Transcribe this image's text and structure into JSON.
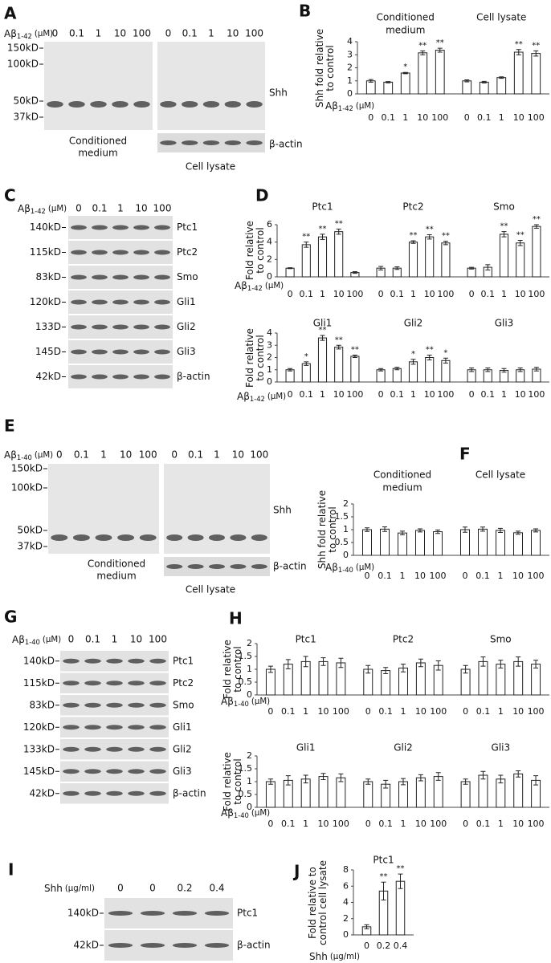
{
  "blots": [
    {
      "panel": "A",
      "treatment": {
        "base": "Aβ",
        "sub": "1-42",
        "unit": "(μM)"
      },
      "lanes": [
        [
          "0",
          "0.1",
          "1",
          "10",
          "100"
        ],
        [
          "0",
          "0.1",
          "1",
          "10",
          "100"
        ]
      ],
      "markers": [
        "150kD",
        "100kD",
        "50kD",
        "37kD"
      ],
      "bands": [
        "Shh",
        "β-actin"
      ],
      "captions": [
        [
          "Conditioned",
          "medium"
        ],
        [
          "Cell lysate"
        ]
      ]
    },
    {
      "panel": "C",
      "treatment": {
        "base": "Aβ",
        "sub": "1-42",
        "unit": "(μM)"
      },
      "lanes": [
        [
          "0",
          "0.1",
          "1",
          "10",
          "100"
        ]
      ],
      "rows": [
        {
          "marker": "140kD",
          "band": "Ptc1"
        },
        {
          "marker": "115kD",
          "band": "Ptc2"
        },
        {
          "marker": "83kD",
          "band": "Smo"
        },
        {
          "marker": "120kD",
          "band": "Gli1"
        },
        {
          "marker": "133D",
          "band": "Gli2"
        },
        {
          "marker": "145D",
          "band": "Gli3"
        },
        {
          "marker": "42kD",
          "band": "β-actin"
        }
      ]
    },
    {
      "panel": "E",
      "treatment": {
        "base": "Aβ",
        "sub": "1-40",
        "unit": "(μM)"
      },
      "lanes": [
        [
          "0",
          "0.1",
          "1",
          "10",
          "100"
        ],
        [
          "0",
          "0.1",
          "1",
          "10",
          "100"
        ]
      ],
      "markers": [
        "150kD",
        "100kD",
        "50kD",
        "37kD"
      ],
      "bands": [
        "Shh",
        "β-actin"
      ],
      "captions": [
        [
          "Conditioned",
          "medium"
        ],
        [
          "Cell lysate"
        ]
      ]
    },
    {
      "panel": "G",
      "treatment": {
        "base": "Aβ",
        "sub": "1-40",
        "unit": "(μM)"
      },
      "lanes": [
        [
          "0",
          "0.1",
          "1",
          "10",
          "100"
        ]
      ],
      "rows": [
        {
          "marker": "140kD",
          "band": "Ptc1"
        },
        {
          "marker": "115kD",
          "band": "Ptc2"
        },
        {
          "marker": "83kD",
          "band": "Smo"
        },
        {
          "marker": "120kD",
          "band": "Gli1"
        },
        {
          "marker": "133kD",
          "band": "Gli2"
        },
        {
          "marker": "145kD",
          "band": "Gli3"
        },
        {
          "marker": "42kD",
          "band": "β-actin"
        }
      ]
    },
    {
      "panel": "I",
      "treatment": {
        "base": "Shh",
        "unit": "(μg/ml)"
      },
      "lanes": [
        [
          "0",
          "0",
          "0.2",
          "0.4"
        ]
      ],
      "rows": [
        {
          "marker": "140kD",
          "band": "Ptc1"
        },
        {
          "marker": "42kD",
          "band": "β-actin"
        }
      ]
    }
  ],
  "chart_data": [
    {
      "type": "bar",
      "panel": "B",
      "ylabel": [
        "Shh fold relative",
        "to control"
      ],
      "xlabel": {
        "base": "Aβ",
        "sub": "1-42",
        "unit": "(μM)"
      },
      "categories": [
        "0",
        "0.1",
        "1",
        "10",
        "100"
      ],
      "ylim": [
        0,
        4
      ],
      "yticks": [
        0,
        1,
        2,
        3,
        4
      ],
      "series": [
        {
          "name": [
            "Conditioned",
            "medium"
          ],
          "values": [
            1,
            0.9,
            1.6,
            3.15,
            3.35
          ],
          "errors": [
            0.1,
            0.05,
            0.05,
            0.15,
            0.15
          ],
          "significance": [
            null,
            null,
            "*",
            "**",
            "**"
          ]
        },
        {
          "name": [
            "Cell lysate"
          ],
          "values": [
            1,
            0.9,
            1.25,
            3.2,
            3.1
          ],
          "errors": [
            0.08,
            0.06,
            0.06,
            0.2,
            0.2
          ],
          "significance": [
            null,
            null,
            null,
            "**",
            "**"
          ]
        }
      ]
    },
    {
      "type": "bar",
      "panel": "D",
      "ylabel": [
        "Fold relative",
        "to control"
      ],
      "xlabel": {
        "base": "Aβ",
        "sub": "1-42",
        "unit": "(μM)"
      },
      "categories": [
        "0",
        "0.1",
        "1",
        "10",
        "100"
      ],
      "ylim": [
        0,
        6
      ],
      "yticks": [
        0,
        2,
        4,
        6
      ],
      "series": [
        {
          "name": [
            "Ptc1"
          ],
          "values": [
            1,
            3.7,
            4.6,
            5.2,
            0.5
          ],
          "errors": [
            0.05,
            0.3,
            0.3,
            0.3,
            0.1
          ],
          "significance": [
            null,
            "**",
            "**",
            "**",
            null
          ]
        },
        {
          "name": [
            "Ptc2"
          ],
          "values": [
            1,
            1,
            4.0,
            4.6,
            3.9
          ],
          "errors": [
            0.2,
            0.15,
            0.15,
            0.25,
            0.2
          ],
          "significance": [
            null,
            null,
            "**",
            "**",
            "**"
          ]
        },
        {
          "name": [
            "Smo"
          ],
          "values": [
            1,
            1.1,
            4.9,
            3.9,
            5.8
          ],
          "errors": [
            0.1,
            0.3,
            0.3,
            0.3,
            0.2
          ],
          "significance": [
            null,
            null,
            "**",
            "**",
            "**"
          ]
        }
      ]
    },
    {
      "type": "bar",
      "ylabel": [
        "Fold relative",
        "to control"
      ],
      "xlabel": {
        "base": "Aβ",
        "sub": "1-42",
        "unit": "(μM)"
      },
      "categories": [
        "0",
        "0.1",
        "1",
        "10",
        "100"
      ],
      "ylim": [
        0,
        4
      ],
      "yticks": [
        0,
        1,
        2,
        3,
        4
      ],
      "series": [
        {
          "name": [
            "Gli1"
          ],
          "values": [
            1,
            1.5,
            3.6,
            2.85,
            2.1
          ],
          "errors": [
            0.1,
            0.15,
            0.2,
            0.15,
            0.1
          ],
          "significance": [
            null,
            "*",
            "**",
            "**",
            "**"
          ]
        },
        {
          "name": [
            "Gli2"
          ],
          "values": [
            1,
            1.1,
            1.65,
            2.0,
            1.75
          ],
          "errors": [
            0.1,
            0.1,
            0.2,
            0.2,
            0.2
          ],
          "significance": [
            null,
            null,
            "*",
            "**",
            "*"
          ]
        },
        {
          "name": [
            "Gli3"
          ],
          "values": [
            1,
            1,
            0.95,
            1,
            1.05
          ],
          "errors": [
            0.15,
            0.15,
            0.15,
            0.15,
            0.15
          ],
          "significance": [
            null,
            null,
            null,
            null,
            null
          ]
        }
      ]
    },
    {
      "type": "bar",
      "panel": "F",
      "ylabel": [
        "Shh fold relative",
        "to control"
      ],
      "xlabel": {
        "base": "Aβ",
        "sub": "1-40",
        "unit": "(μM)"
      },
      "categories": [
        "0",
        "0.1",
        "1",
        "10",
        "100"
      ],
      "ylim": [
        0,
        2
      ],
      "yticks": [
        0,
        0.5,
        1,
        1.5,
        2
      ],
      "series": [
        {
          "name": [
            "Conditioned",
            "medium"
          ],
          "values": [
            1,
            1.02,
            0.87,
            0.97,
            0.92
          ],
          "errors": [
            0.07,
            0.09,
            0.07,
            0.06,
            0.07
          ]
        },
        {
          "name": [
            "Cell lysate"
          ],
          "values": [
            1,
            1.02,
            0.97,
            0.88,
            0.97
          ],
          "errors": [
            0.1,
            0.08,
            0.08,
            0.06,
            0.06
          ]
        }
      ]
    },
    {
      "type": "bar",
      "panel": "H",
      "ylabel": [
        "Fold relative",
        "to control"
      ],
      "xlabel": {
        "base": "Aβ",
        "sub": "1-40",
        "unit": "(μM)"
      },
      "categories": [
        "0",
        "0.1",
        "1",
        "10",
        "100"
      ],
      "ylim": [
        0,
        2
      ],
      "yticks": [
        0,
        0.5,
        1,
        1.5,
        2
      ],
      "series": [
        {
          "name": [
            "Ptc1"
          ],
          "values": [
            1,
            1.2,
            1.3,
            1.3,
            1.25
          ],
          "errors": [
            0.12,
            0.18,
            0.2,
            0.15,
            0.18
          ]
        },
        {
          "name": [
            "Ptc2"
          ],
          "values": [
            1,
            0.95,
            1.05,
            1.25,
            1.15
          ],
          "errors": [
            0.15,
            0.12,
            0.15,
            0.15,
            0.18
          ]
        },
        {
          "name": [
            "Smo"
          ],
          "values": [
            1,
            1.3,
            1.2,
            1.3,
            1.2
          ],
          "errors": [
            0.15,
            0.18,
            0.15,
            0.18,
            0.15
          ]
        }
      ]
    },
    {
      "type": "bar",
      "ylabel": [
        "Fold relative",
        "to control"
      ],
      "xlabel": {
        "base": "Aβ",
        "sub": "1-40",
        "unit": "(μM)"
      },
      "categories": [
        "0",
        "0.1",
        "1",
        "10",
        "100"
      ],
      "ylim": [
        0,
        2
      ],
      "yticks": [
        0,
        0.5,
        1,
        1.5,
        2
      ],
      "series": [
        {
          "name": [
            "Gli1"
          ],
          "values": [
            1,
            1.05,
            1.1,
            1.2,
            1.15
          ],
          "errors": [
            0.1,
            0.18,
            0.15,
            0.12,
            0.15
          ]
        },
        {
          "name": [
            "Gli2"
          ],
          "values": [
            1,
            0.9,
            1.0,
            1.15,
            1.2
          ],
          "errors": [
            0.1,
            0.15,
            0.12,
            0.12,
            0.15
          ]
        },
        {
          "name": [
            "Gli3"
          ],
          "values": [
            1,
            1.25,
            1.1,
            1.3,
            1.05
          ],
          "errors": [
            0.1,
            0.15,
            0.15,
            0.12,
            0.18
          ]
        }
      ]
    },
    {
      "type": "bar",
      "panel": "J",
      "ylabel": [
        "Fold relative to",
        "control cell lysate"
      ],
      "xlabel": {
        "base": "Shh",
        "unit": "(μg/ml)"
      },
      "categories": [
        "0",
        "0.2",
        "0.4"
      ],
      "ylim": [
        0,
        8
      ],
      "yticks": [
        0,
        2,
        4,
        6,
        8
      ],
      "series": [
        {
          "name": [
            "Ptc1"
          ],
          "values": [
            1,
            5.4,
            6.6
          ],
          "errors": [
            0.25,
            1.1,
            0.9
          ],
          "significance": [
            null,
            "**",
            "**"
          ]
        }
      ]
    }
  ]
}
